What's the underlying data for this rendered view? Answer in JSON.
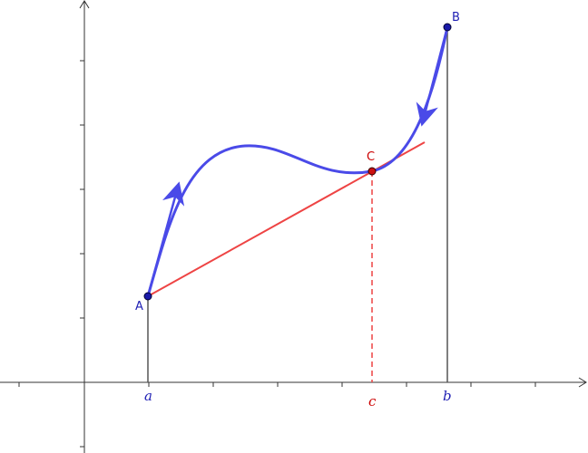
{
  "points": {
    "A": {
      "label": "A",
      "color": "#1f1fb4"
    },
    "B": {
      "label": "B",
      "color": "#1f1fb4"
    },
    "C": {
      "label": "C",
      "color": "#cc0000"
    }
  },
  "axis_labels": {
    "a": {
      "text": "a",
      "color": "#1f1fb4"
    },
    "b": {
      "text": "b",
      "color": "#1f1fb4"
    },
    "c": {
      "text": "c",
      "color": "#cc0000"
    }
  },
  "colors": {
    "curve": "#4a4ae8",
    "secant": "#ee4444",
    "axes": "#333333",
    "vertical_lines": "#555555",
    "dashed": "#ee4444",
    "point_fill_blue": "#1a1aa8",
    "point_fill_red": "#cc1111"
  }
}
